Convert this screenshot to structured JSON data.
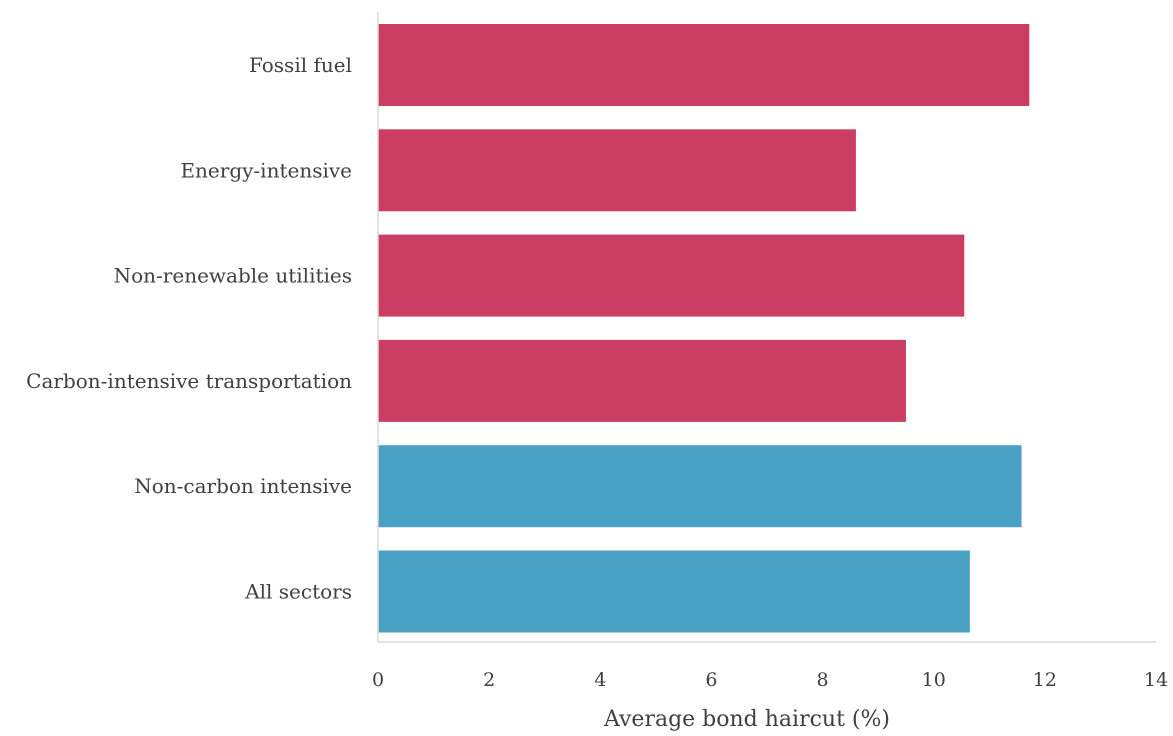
{
  "chart_data": {
    "type": "bar",
    "orientation": "horizontal",
    "title": "",
    "xlabel": "Average bond haircut (%)",
    "ylabel": "",
    "xlim": [
      0,
      14
    ],
    "xticks": [
      0,
      2,
      4,
      6,
      8,
      10,
      12,
      14
    ],
    "grid": false,
    "legend": "none",
    "categories": [
      "Fossil fuel",
      "Energy-intensive",
      "Non-renewable utilities",
      "Carbon-intensive transportation",
      "Non-carbon intensive",
      "All sectors"
    ],
    "values": [
      11.72,
      8.6,
      10.55,
      9.5,
      11.58,
      10.65
    ],
    "bar_colors": [
      "#cc3d63",
      "#cc3d63",
      "#cc3d63",
      "#cc3d63",
      "#48a1c3",
      "#48a1c3"
    ]
  }
}
